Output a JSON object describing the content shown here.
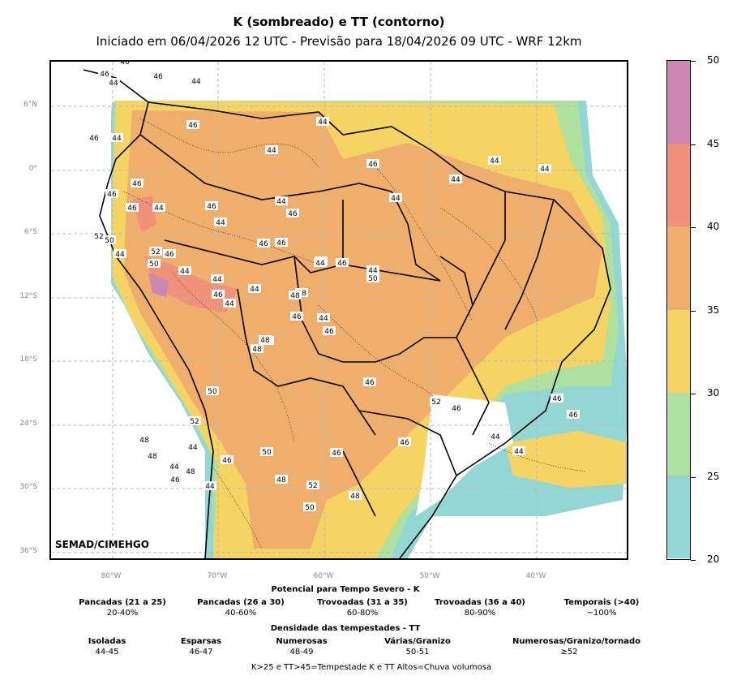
{
  "title": "K (sombreado) e TT (contorno)",
  "subtitle": "Iniciado em 06/04/2026 12 UTC - Previsão para 18/04/2026 09 UTC - WRF 12km",
  "credit": "SEMAD/CIMEHGO",
  "lat_labels": [
    "6°N",
    "0°",
    "6°S",
    "12°S",
    "18°S",
    "24°S",
    "30°S",
    "36°S"
  ],
  "lon_labels": [
    "80°W",
    "70°W",
    "60°W",
    "50°W",
    "40°W"
  ],
  "colorbar": {
    "ticks": [
      "50",
      "45",
      "40",
      "35",
      "30",
      "25",
      "20"
    ],
    "colors": [
      "#cc88b0",
      "#f0917a",
      "#f0ae6c",
      "#f6d463",
      "#aee0a0",
      "#93d7d5"
    ]
  },
  "legend": {
    "k_title": "Potencial para Tempo Severo - K",
    "k_items": [
      {
        "h": "Pancadas (21 a 25)",
        "v": "20-40%"
      },
      {
        "h": "Pancadas (26 a 30)",
        "v": "40-60%"
      },
      {
        "h": "Trovoadas (31 a 35)",
        "v": "60-80%"
      },
      {
        "h": "Trovoadas (36 a 40)",
        "v": "80-90%"
      },
      {
        "h": "Temporais (>40)",
        "v": "~100%"
      }
    ],
    "tt_title": "Densidade das tempestades - TT",
    "tt_items": [
      {
        "h": "Isoladas",
        "v": "44-45"
      },
      {
        "h": "Esparsas",
        "v": "46-47"
      },
      {
        "h": "Numerosas",
        "v": "48-49"
      },
      {
        "h": "Várias/Granizo",
        "v": "50-51"
      },
      {
        "h": "Numerosas/Granizo/tornado",
        "v": "≥52"
      }
    ],
    "note": "K>25 e TT>45=Tempestade      K e TT Altos=Chuva volumosa"
  },
  "contour_labels": [
    "44",
    "46",
    "46",
    "44",
    "46",
    "44",
    "46",
    "44",
    "46",
    "44",
    "44",
    "46",
    "44",
    "44",
    "44",
    "44",
    "46",
    "46",
    "46",
    "44",
    "46",
    "44",
    "44",
    "46",
    "46",
    "46",
    "44",
    "46",
    "48",
    "52",
    "50",
    "44",
    "52",
    "46",
    "50",
    "44",
    "44",
    "46",
    "44",
    "44",
    "44",
    "44",
    "50",
    "44",
    "48",
    "46",
    "44",
    "46",
    "48",
    "48",
    "50",
    "52",
    "44",
    "48",
    "48",
    "44",
    "46",
    "44",
    "46",
    "50",
    "48",
    "52",
    "50",
    "46",
    "48",
    "46",
    "46",
    "52",
    "46",
    "44",
    "44",
    "46",
    "46",
    "48"
  ]
}
